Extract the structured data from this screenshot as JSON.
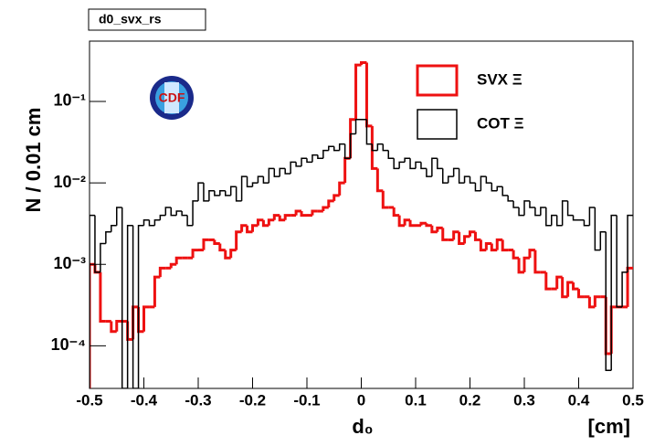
{
  "chart_data": {
    "type": "histogram",
    "title": "d0_svx_rs",
    "x_label": "d₀",
    "x_unit": "[cm]",
    "y_label": "N / 0.01 cm",
    "logy": true,
    "bins": [
      -0.5,
      -0.49,
      -0.48,
      -0.47,
      -0.46,
      -0.45,
      -0.44,
      -0.43,
      -0.42,
      -0.41,
      -0.4,
      -0.39,
      -0.38,
      -0.37,
      -0.36,
      -0.35,
      -0.34,
      -0.33,
      -0.32,
      -0.31,
      -0.3,
      -0.29,
      -0.28,
      -0.27,
      -0.26,
      -0.25,
      -0.24,
      -0.23,
      -0.22,
      -0.21,
      -0.2,
      -0.19,
      -0.18,
      -0.17,
      -0.16,
      -0.15,
      -0.14,
      -0.13,
      -0.12,
      -0.11,
      -0.1,
      -0.09,
      -0.08,
      -0.07,
      -0.06,
      -0.05,
      -0.04,
      -0.03,
      -0.02,
      -0.01,
      0,
      0.01,
      0.02,
      0.03,
      0.04,
      0.05,
      0.06,
      0.07,
      0.08,
      0.09,
      0.1,
      0.11,
      0.12,
      0.13,
      0.14,
      0.15,
      0.16,
      0.17,
      0.18,
      0.19,
      0.2,
      0.21,
      0.22,
      0.23,
      0.24,
      0.25,
      0.26,
      0.27,
      0.28,
      0.29,
      0.3,
      0.31,
      0.32,
      0.33,
      0.34,
      0.35,
      0.36,
      0.37,
      0.38,
      0.39,
      0.4,
      0.41,
      0.42,
      0.43,
      0.44,
      0.45,
      0.46,
      0.47,
      0.48,
      0.49,
      0.5
    ],
    "series": [
      {
        "name": "SVX Ξ",
        "color": "#ee1111",
        "values": [
          0.001,
          0.0008,
          0.0002,
          0.0002,
          0.00015,
          0.0002,
          0.0002,
          0.00012,
          0.0003,
          0.00015,
          0.0003,
          0.0003,
          0.0007,
          0.0009,
          0.0009,
          0.001,
          0.0012,
          0.0012,
          0.0012,
          0.0015,
          0.0015,
          0.002,
          0.002,
          0.0018,
          0.0015,
          0.0012,
          0.0015,
          0.0025,
          0.003,
          0.0025,
          0.003,
          0.0035,
          0.003,
          0.0035,
          0.004,
          0.0035,
          0.004,
          0.004,
          0.0045,
          0.004,
          0.004,
          0.0045,
          0.0045,
          0.005,
          0.006,
          0.007,
          0.01,
          0.02,
          0.06,
          0.28,
          0.3,
          0.05,
          0.015,
          0.008,
          0.005,
          0.005,
          0.004,
          0.003,
          0.0035,
          0.003,
          0.003,
          0.0032,
          0.003,
          0.0025,
          0.0028,
          0.002,
          0.002,
          0.0025,
          0.0018,
          0.0022,
          0.0025,
          0.002,
          0.0015,
          0.0018,
          0.0015,
          0.002,
          0.0015,
          0.0015,
          0.0012,
          0.0008,
          0.0012,
          0.0015,
          0.0008,
          0.0008,
          0.0005,
          0.0005,
          0.0007,
          0.0004,
          0.0006,
          0.0005,
          0.0004,
          0.0004,
          0.0003,
          0.0004,
          0.0004,
          8e-05,
          0.0003,
          0.0003,
          0.0003,
          0.0009
        ]
      },
      {
        "name": "COT Ξ",
        "color": "#000000",
        "values": [
          0.004,
          0.0008,
          0.0018,
          0.0025,
          0.003,
          0.005,
          3e-05,
          0.003,
          3e-05,
          0.003,
          0.0035,
          0.003,
          0.0035,
          0.004,
          0.005,
          0.004,
          0.0045,
          0.004,
          0.003,
          0.006,
          0.01,
          0.006,
          0.008,
          0.007,
          0.008,
          0.007,
          0.009,
          0.006,
          0.012,
          0.009,
          0.01,
          0.012,
          0.01,
          0.015,
          0.012,
          0.015,
          0.013,
          0.018,
          0.016,
          0.02,
          0.018,
          0.022,
          0.02,
          0.025,
          0.028,
          0.025,
          0.03,
          0.02,
          0.04,
          0.06,
          0.06,
          0.03,
          0.025,
          0.03,
          0.025,
          0.02,
          0.015,
          0.018,
          0.02,
          0.015,
          0.018,
          0.015,
          0.012,
          0.02,
          0.015,
          0.01,
          0.012,
          0.015,
          0.01,
          0.012,
          0.01,
          0.008,
          0.012,
          0.01,
          0.008,
          0.009,
          0.007,
          0.006,
          0.005,
          0.004,
          0.006,
          0.005,
          0.004,
          0.005,
          0.003,
          0.004,
          0.003,
          0.006,
          0.004,
          0.0035,
          0.0035,
          0.003,
          0.005,
          0.0015,
          0.0025,
          5e-05,
          0.004,
          0.0003,
          0.0008,
          0.004
        ]
      }
    ],
    "xlim": [
      -0.5,
      0.5
    ],
    "xticks": [
      -0.5,
      -0.4,
      -0.3,
      -0.2,
      -0.1,
      0,
      0.1,
      0.2,
      0.3,
      0.4,
      0.5
    ],
    "ylim": [
      3e-05,
      0.55
    ],
    "yticks": [
      {
        "value": 0.0001,
        "label": "10⁻⁴"
      },
      {
        "value": 0.001,
        "label": "10⁻³"
      },
      {
        "value": 0.01,
        "label": "10⁻²"
      },
      {
        "value": 0.1,
        "label": "10⁻¹"
      }
    ]
  }
}
